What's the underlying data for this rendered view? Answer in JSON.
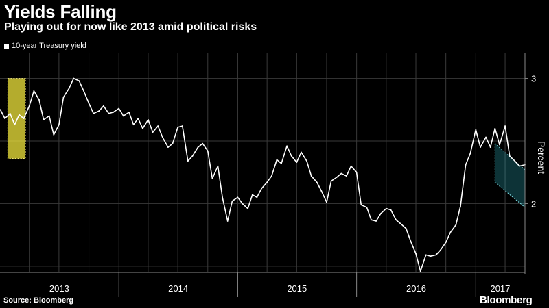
{
  "title": "Yields Falling",
  "subtitle": "Playing out for now like 2013 amid political risks",
  "source": "Source: Bloomberg",
  "brand": "Bloomberg",
  "colors": {
    "background": "#000000",
    "line": "#ffffff",
    "highlight_2013": "#f0e63c",
    "highlight_2017": "#2fb8c4",
    "grid": "#3a3a3a"
  },
  "chart_data": {
    "type": "line",
    "title": "Yields Falling",
    "subtitle": "Playing out for now like 2013 amid political risks",
    "ylabel": "Percent",
    "xlabel": "",
    "ylim": [
      1.45,
      3.2
    ],
    "xlim": [
      "2013-01-01",
      "2017-06-01"
    ],
    "y_ticks": [
      2,
      3
    ],
    "x_tick_labels": [
      "2013",
      "2014",
      "2015",
      "2016",
      "2017"
    ],
    "legend": [
      "10-year Treasury yield"
    ],
    "legend_position": "top-left",
    "grid": true,
    "series": [
      {
        "name": "10-year Treasury yield",
        "x": [
          "2013-01-02",
          "2013-01-16",
          "2013-02-01",
          "2013-02-15",
          "2013-03-01",
          "2013-03-15",
          "2013-04-01",
          "2013-04-15",
          "2013-05-01",
          "2013-05-15",
          "2013-06-01",
          "2013-06-15",
          "2013-07-01",
          "2013-07-15",
          "2013-08-01",
          "2013-08-15",
          "2013-09-01",
          "2013-09-15",
          "2013-10-01",
          "2013-10-15",
          "2013-11-01",
          "2013-11-15",
          "2013-12-01",
          "2013-12-15",
          "2014-01-01",
          "2014-01-15",
          "2014-02-01",
          "2014-02-15",
          "2014-03-01",
          "2014-03-15",
          "2014-04-01",
          "2014-04-15",
          "2014-05-01",
          "2014-05-15",
          "2014-06-01",
          "2014-06-15",
          "2014-07-01",
          "2014-07-15",
          "2014-08-01",
          "2014-08-15",
          "2014-09-01",
          "2014-09-15",
          "2014-10-01",
          "2014-10-15",
          "2014-11-01",
          "2014-11-15",
          "2014-12-01",
          "2014-12-15",
          "2015-01-01",
          "2015-01-15",
          "2015-02-01",
          "2015-02-15",
          "2015-03-01",
          "2015-03-15",
          "2015-04-01",
          "2015-04-15",
          "2015-05-01",
          "2015-05-15",
          "2015-06-01",
          "2015-06-15",
          "2015-07-01",
          "2015-07-15",
          "2015-08-01",
          "2015-08-15",
          "2015-09-01",
          "2015-09-15",
          "2015-10-01",
          "2015-10-15",
          "2015-11-01",
          "2015-11-15",
          "2015-12-01",
          "2015-12-15",
          "2016-01-01",
          "2016-01-15",
          "2016-02-01",
          "2016-02-15",
          "2016-03-01",
          "2016-03-15",
          "2016-04-01",
          "2016-04-15",
          "2016-05-01",
          "2016-05-15",
          "2016-06-01",
          "2016-06-15",
          "2016-07-01",
          "2016-07-15",
          "2016-08-01",
          "2016-08-15",
          "2016-09-01",
          "2016-09-15",
          "2016-10-01",
          "2016-10-15",
          "2016-11-01",
          "2016-11-15",
          "2016-12-01",
          "2016-12-15",
          "2017-01-01",
          "2017-01-15",
          "2017-02-01",
          "2017-02-15",
          "2017-03-01",
          "2017-03-15",
          "2017-04-01",
          "2017-04-15",
          "2017-05-01",
          "2017-05-15",
          "2017-06-01"
        ],
        "values": [
          2.75,
          2.68,
          2.72,
          2.63,
          2.71,
          2.68,
          2.78,
          2.9,
          2.83,
          2.67,
          2.7,
          2.55,
          2.63,
          2.85,
          2.92,
          3.0,
          2.98,
          2.9,
          2.8,
          2.72,
          2.74,
          2.78,
          2.72,
          2.73,
          2.76,
          2.7,
          2.73,
          2.63,
          2.68,
          2.6,
          2.67,
          2.57,
          2.62,
          2.53,
          2.45,
          2.48,
          2.61,
          2.62,
          2.34,
          2.38,
          2.45,
          2.48,
          2.42,
          2.2,
          2.3,
          2.05,
          1.86,
          2.02,
          2.05,
          2.0,
          1.96,
          2.07,
          2.05,
          2.12,
          2.17,
          2.22,
          2.35,
          2.32,
          2.46,
          2.38,
          2.33,
          2.41,
          2.34,
          2.22,
          2.17,
          2.1,
          2.01,
          2.18,
          2.21,
          2.24,
          2.22,
          2.3,
          2.25,
          1.99,
          1.97,
          1.87,
          1.86,
          1.92,
          1.96,
          1.95,
          1.87,
          1.84,
          1.8,
          1.7,
          1.6,
          1.46,
          1.59,
          1.58,
          1.59,
          1.63,
          1.69,
          1.77,
          1.83,
          1.98,
          2.31,
          2.4,
          2.59,
          2.45,
          2.53,
          2.45,
          2.6,
          2.47,
          2.62,
          2.38,
          2.34,
          2.3,
          2.31
        ]
      }
    ],
    "annotations": [
      {
        "type": "highlight",
        "from": "2013-01-25",
        "to": "2013-03-20",
        "label": ""
      },
      {
        "type": "trend-channel",
        "from": "2017-03-01",
        "to": "2017-06-01",
        "label": ""
      }
    ]
  }
}
